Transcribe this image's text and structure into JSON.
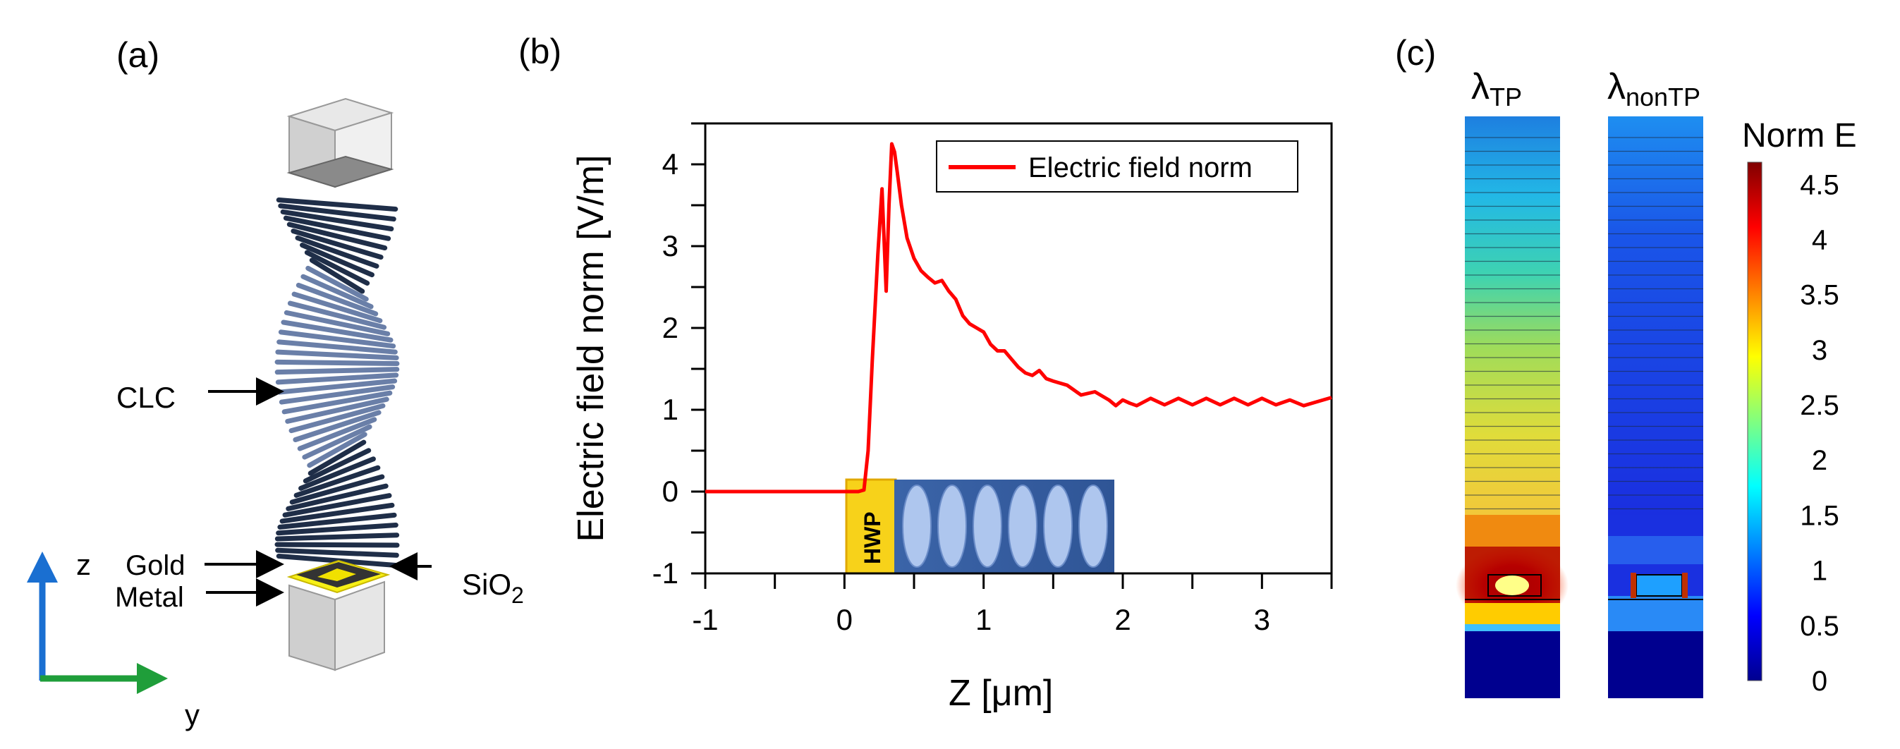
{
  "panels": {
    "a": {
      "label": "(a)",
      "annotations": {
        "clc": "CLC",
        "gold": "Gold",
        "metal": "Metal",
        "sio2_base": "SiO",
        "sio2_sub": "2"
      },
      "axes": {
        "z": "z",
        "y": "y"
      }
    },
    "b": {
      "label": "(b)",
      "inset": {
        "hwp": "HWP"
      }
    },
    "c": {
      "label": "(c)",
      "maps": [
        {
          "base": "λ",
          "sub": "TP"
        },
        {
          "base": "λ",
          "sub": "nonTP"
        }
      ],
      "colorbar": {
        "title": "Norm E",
        "ticks": [
          "4.5",
          "4",
          "3.5",
          "3",
          "2.5",
          "2",
          "1.5",
          "1",
          "0.5",
          "0"
        ],
        "range": [
          0,
          4.7
        ],
        "colors": [
          "#00008f",
          "#0000ff",
          "#0080ff",
          "#00ffff",
          "#80ff80",
          "#ffff00",
          "#ff8000",
          "#ff0000",
          "#800000"
        ]
      }
    }
  },
  "chart_data": {
    "type": "line",
    "title": "",
    "xlabel": "Z [μm]",
    "ylabel": "Electric field norm [V/m]",
    "xlim": [
      -1,
      3.5
    ],
    "ylim": [
      -1,
      4.5
    ],
    "xticks": [
      "-1",
      "0",
      "1",
      "2",
      "3"
    ],
    "yticks": [
      "-1",
      "0",
      "1",
      "2",
      "3",
      "4"
    ],
    "legend": "top-right",
    "series": [
      {
        "name": "Electric field norm",
        "color": "#ff0000",
        "x": [
          -1,
          0,
          0.1,
          0.14,
          0.17,
          0.2,
          0.24,
          0.27,
          0.3,
          0.32,
          0.34,
          0.36,
          0.38,
          0.41,
          0.45,
          0.5,
          0.55,
          0.6,
          0.65,
          0.7,
          0.75,
          0.8,
          0.85,
          0.9,
          0.95,
          1.0,
          1.05,
          1.1,
          1.15,
          1.2,
          1.25,
          1.3,
          1.35,
          1.4,
          1.45,
          1.5,
          1.6,
          1.7,
          1.8,
          1.9,
          1.95,
          2.0,
          2.05,
          2.1,
          2.2,
          2.3,
          2.4,
          2.5,
          2.6,
          2.7,
          2.8,
          2.9,
          3.0,
          3.1,
          3.2,
          3.3,
          3.4,
          3.5
        ],
        "y": [
          0,
          0,
          0,
          0.02,
          0.5,
          1.6,
          2.9,
          3.7,
          2.45,
          3.5,
          4.25,
          4.15,
          3.9,
          3.5,
          3.1,
          2.85,
          2.7,
          2.62,
          2.55,
          2.58,
          2.45,
          2.35,
          2.15,
          2.05,
          2.0,
          1.95,
          1.8,
          1.72,
          1.72,
          1.62,
          1.52,
          1.45,
          1.42,
          1.48,
          1.38,
          1.35,
          1.3,
          1.18,
          1.22,
          1.12,
          1.05,
          1.12,
          1.08,
          1.05,
          1.14,
          1.06,
          1.14,
          1.06,
          1.14,
          1.06,
          1.14,
          1.06,
          1.14,
          1.06,
          1.12,
          1.05,
          1.1,
          1.15
        ]
      }
    ]
  }
}
